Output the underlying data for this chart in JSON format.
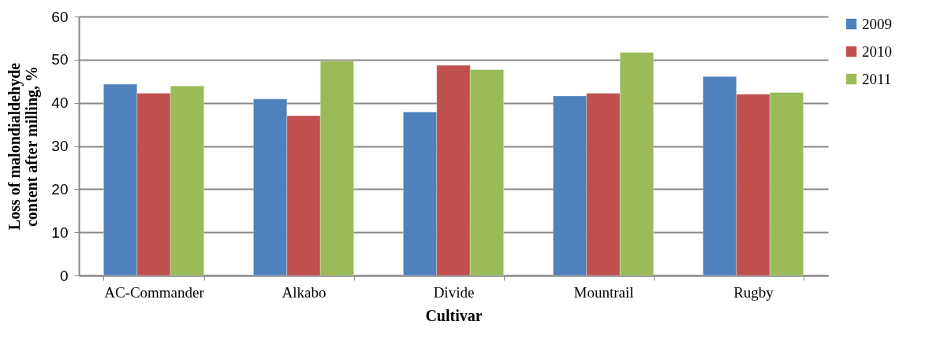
{
  "chart_data": {
    "type": "bar",
    "xlabel": "Cultivar",
    "ylabel": "Loss of malondialdehyde content after milling, %",
    "categories": [
      "AC-Commander",
      "Alkabo",
      "Divide",
      "Mountrail",
      "Rugby"
    ],
    "series": [
      {
        "name": "2009",
        "color": "#4f81bd",
        "values": [
          44.3,
          40.9,
          37.9,
          41.6,
          46.1
        ]
      },
      {
        "name": "2010",
        "color": "#c0504d",
        "values": [
          42.2,
          37.0,
          48.7,
          42.2,
          42.0
        ]
      },
      {
        "name": "2011",
        "color": "#9bbb59",
        "values": [
          43.9,
          49.7,
          47.7,
          51.7,
          42.4
        ]
      }
    ],
    "ylim": [
      0,
      60
    ],
    "yticks": [
      0,
      10,
      20,
      30,
      40,
      50,
      60
    ],
    "grid": "y",
    "legend": "right"
  }
}
